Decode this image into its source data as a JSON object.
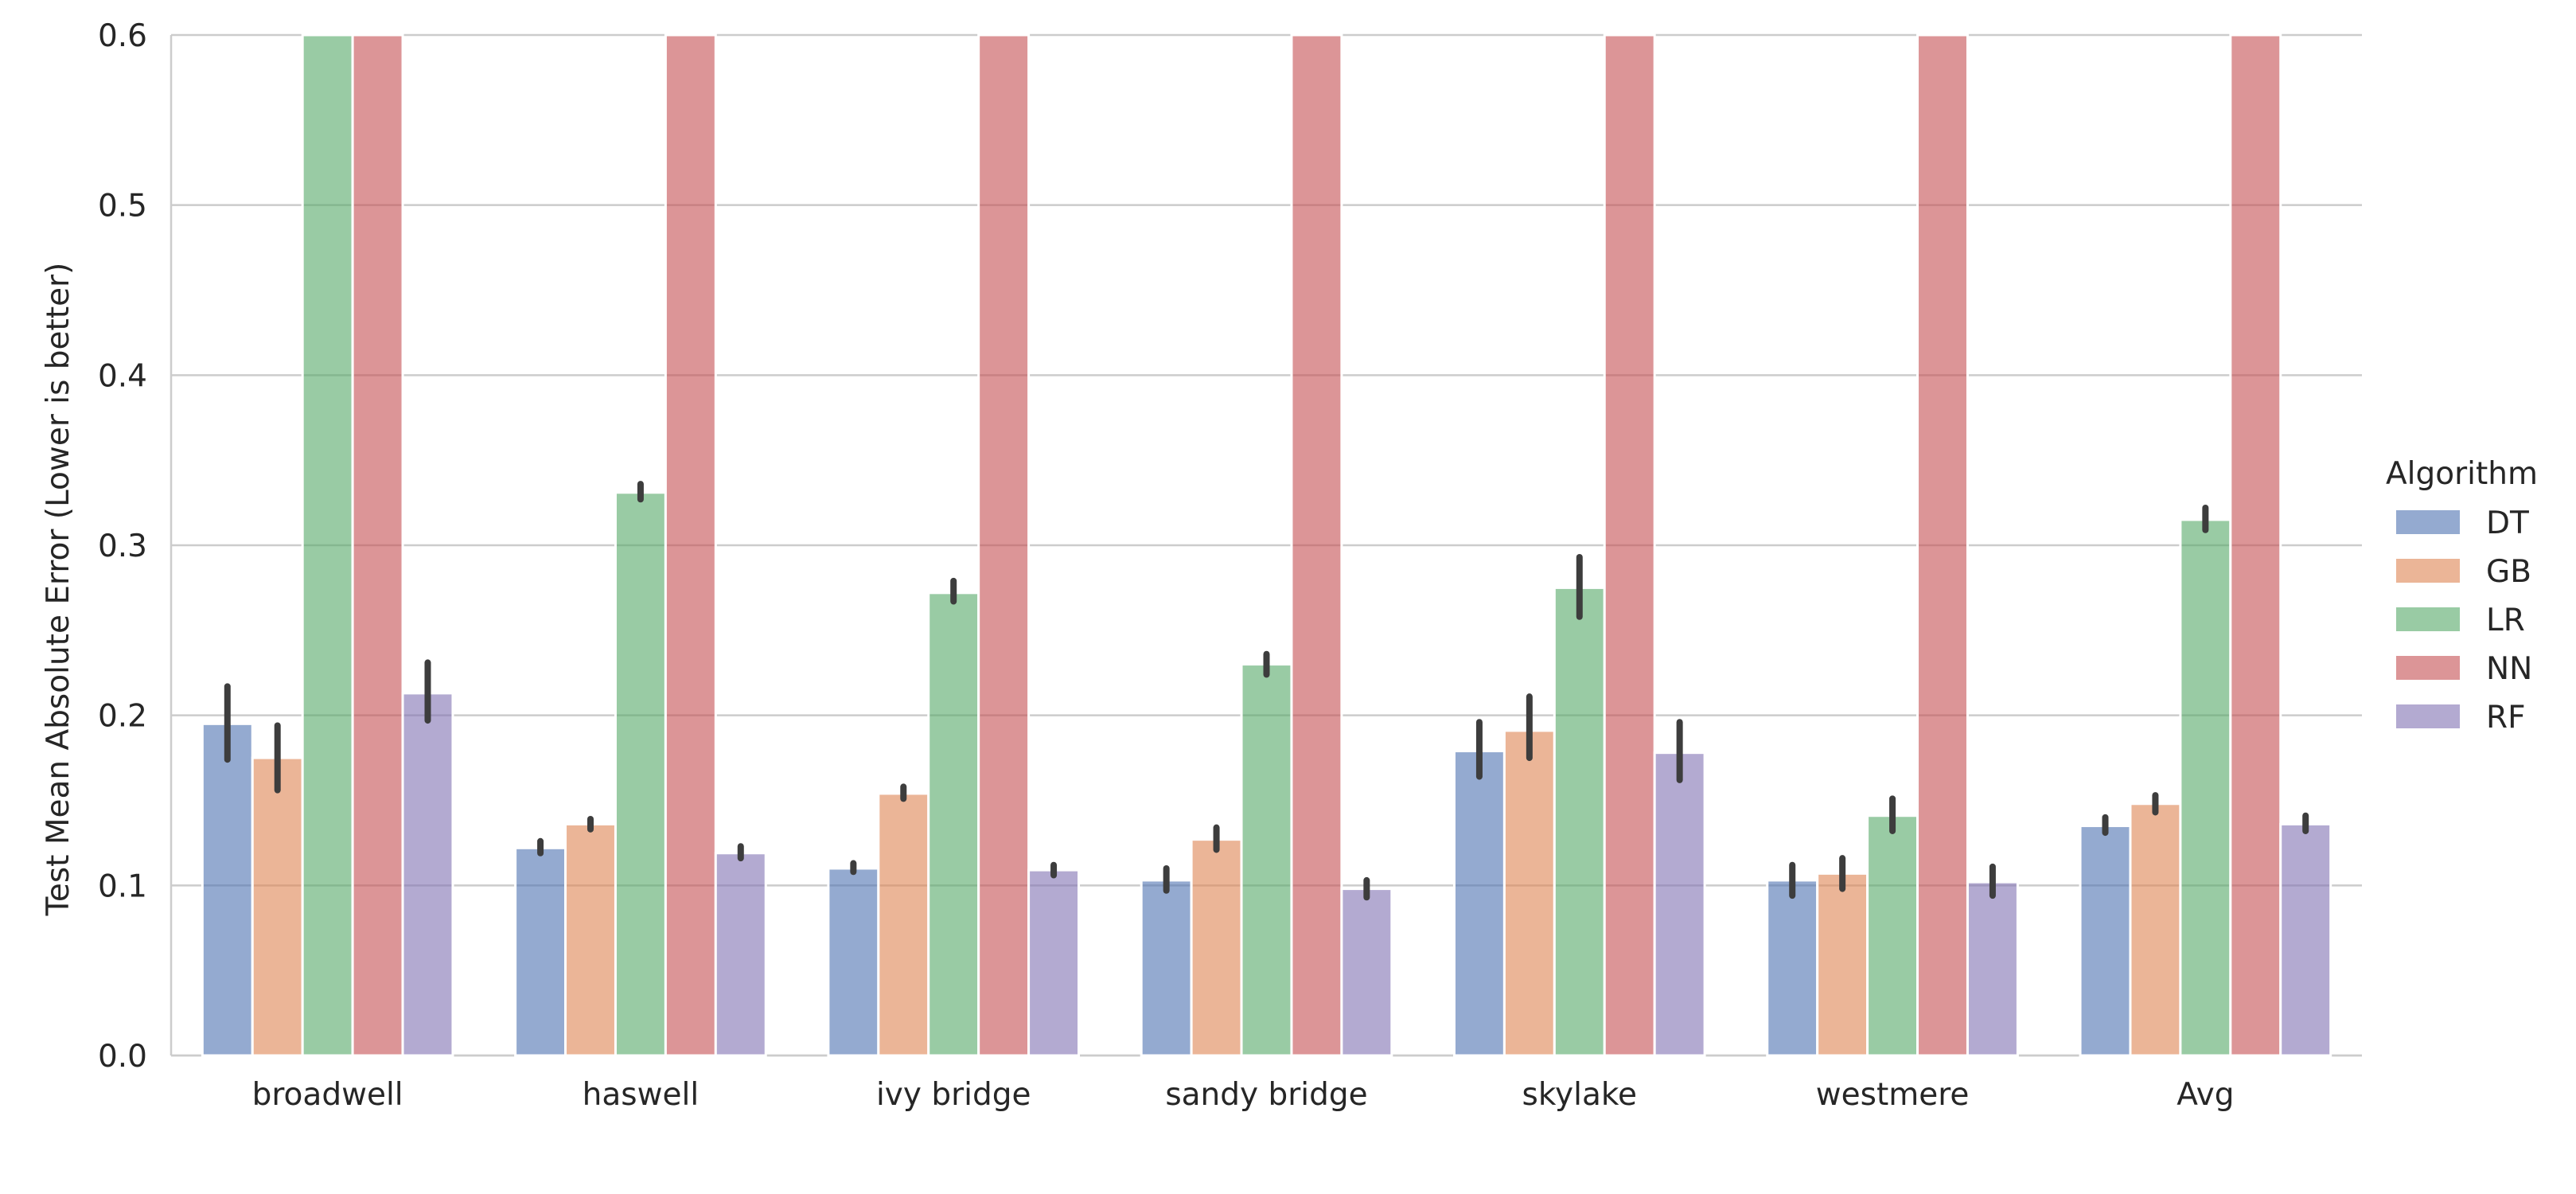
{
  "chart_data": {
    "type": "bar",
    "xlabel": "",
    "ylabel": "Test Mean Absolute Error (Lower is better)",
    "ylim": [
      0,
      0.6
    ],
    "yticks": [
      "0.0",
      "0.1",
      "0.2",
      "0.3",
      "0.4",
      "0.5",
      "0.6"
    ],
    "grid": "horizontal",
    "legend": {
      "title": "Algorithm",
      "placement": "right"
    },
    "categories": [
      "broadwell",
      "haswell",
      "ivy bridge",
      "sandy bridge",
      "skylake",
      "westmere",
      "Avg"
    ],
    "series": [
      {
        "name": "DT",
        "color": "#4c72b0",
        "values": [
          0.195,
          0.122,
          0.11,
          0.103,
          0.179,
          0.103,
          0.135
        ],
        "ci": [
          [
            0.174,
            0.217
          ],
          [
            0.119,
            0.126
          ],
          [
            0.108,
            0.113
          ],
          [
            0.097,
            0.11
          ],
          [
            0.164,
            0.196
          ],
          [
            0.094,
            0.112
          ],
          [
            0.131,
            0.14
          ]
        ]
      },
      {
        "name": "GB",
        "color": "#dd8452",
        "values": [
          0.175,
          0.136,
          0.154,
          0.127,
          0.191,
          0.107,
          0.148
        ],
        "ci": [
          [
            0.156,
            0.194
          ],
          [
            0.133,
            0.139
          ],
          [
            0.151,
            0.158
          ],
          [
            0.121,
            0.134
          ],
          [
            0.175,
            0.211
          ],
          [
            0.098,
            0.116
          ],
          [
            0.143,
            0.153
          ]
        ]
      },
      {
        "name": "LR",
        "color": "#55a868",
        "values": [
          0.6,
          0.331,
          0.272,
          0.23,
          0.275,
          0.141,
          0.315
        ],
        "ci": [
          null,
          [
            0.327,
            0.336
          ],
          [
            0.267,
            0.279
          ],
          [
            0.224,
            0.236
          ],
          [
            0.258,
            0.293
          ],
          [
            0.132,
            0.151
          ],
          [
            0.309,
            0.322
          ]
        ]
      },
      {
        "name": "NN",
        "color": "#c44e52",
        "values": [
          0.6,
          0.6,
          0.6,
          0.6,
          0.6,
          0.6,
          0.6
        ],
        "ci": [
          null,
          null,
          null,
          null,
          null,
          null,
          null
        ]
      },
      {
        "name": "RF",
        "color": "#8172b3",
        "values": [
          0.213,
          0.119,
          0.109,
          0.098,
          0.178,
          0.102,
          0.136
        ],
        "ci": [
          [
            0.197,
            0.231
          ],
          [
            0.116,
            0.123
          ],
          [
            0.106,
            0.112
          ],
          [
            0.093,
            0.103
          ],
          [
            0.162,
            0.196
          ],
          [
            0.094,
            0.111
          ],
          [
            0.132,
            0.141
          ]
        ]
      }
    ]
  }
}
